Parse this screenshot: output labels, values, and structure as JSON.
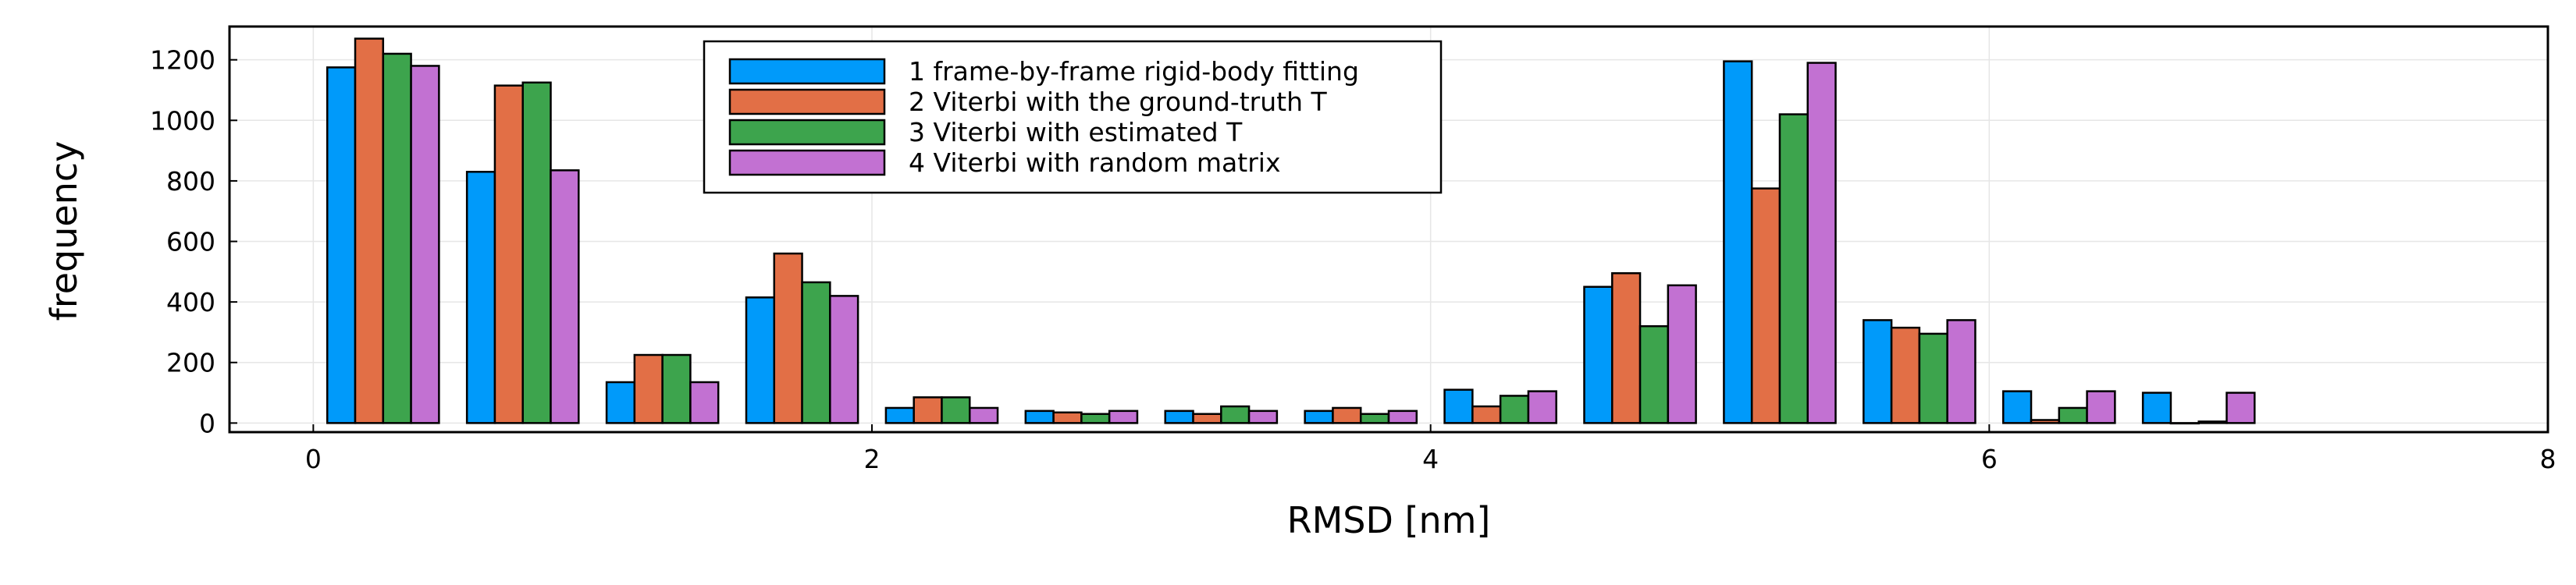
{
  "chart_data": {
    "type": "bar",
    "xlabel": "RMSD [nm]",
    "ylabel": "frequency",
    "xlim": [
      -0.3,
      8
    ],
    "ylim": [
      -30,
      1310
    ],
    "x_ticks": [
      0,
      2,
      4,
      6,
      8
    ],
    "y_ticks": [
      0,
      200,
      400,
      600,
      800,
      1000,
      1200
    ],
    "grid": true,
    "legend_position": "top-center",
    "bin_width": 0.5,
    "bin_centers": [
      0.25,
      0.75,
      1.25,
      1.75,
      2.25,
      2.75,
      3.25,
      3.75,
      4.25,
      4.75,
      5.25,
      5.75,
      6.25,
      6.75
    ],
    "series": [
      {
        "name": "1 frame-by-frame rigid-body fitting",
        "color": "#009afa",
        "values": [
          1175,
          830,
          135,
          415,
          50,
          40,
          40,
          40,
          110,
          450,
          1195,
          340,
          105,
          100
        ]
      },
      {
        "name": "2 Viterbi with the ground-truth T",
        "color": "#e26f46",
        "values": [
          1270,
          1115,
          225,
          560,
          85,
          35,
          30,
          50,
          55,
          495,
          775,
          315,
          10,
          0
        ]
      },
      {
        "name": "3 Viterbi with estimated T",
        "color": "#3da44d",
        "values": [
          1220,
          1125,
          225,
          465,
          85,
          30,
          55,
          30,
          90,
          320,
          1020,
          295,
          50,
          5
        ]
      },
      {
        "name": "4 Viterbi with random matrix",
        "color": "#c271d2",
        "values": [
          1180,
          835,
          135,
          420,
          50,
          40,
          40,
          40,
          105,
          455,
          1190,
          340,
          105,
          100
        ]
      }
    ]
  }
}
